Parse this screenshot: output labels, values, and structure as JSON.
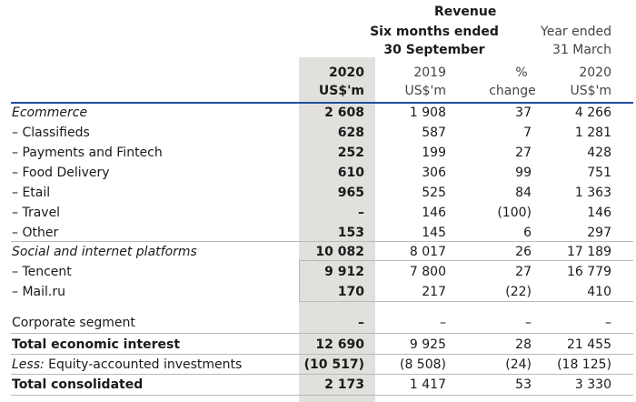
{
  "header": {
    "revenue": "Revenue",
    "six_months_line1": "Six months ended",
    "six_months_line2": "30 September",
    "year_ended_line1": "Year ended",
    "year_ended_line2": "31 March",
    "col_2020_year": "2020",
    "col_2020_unit": "US$'m",
    "col_2019_year": "2019",
    "col_2019_unit": "US$'m",
    "col_pct_top": "%",
    "col_pct_bottom": "change",
    "col_ye_year": "2020",
    "col_ye_unit": "US$'m"
  },
  "rows": [
    {
      "label": "Ecommerce",
      "v2020": "2 608",
      "v2019": "1 908",
      "pct": "37",
      "ye": "4 266"
    },
    {
      "label": "– Classifieds",
      "v2020": "628",
      "v2019": "587",
      "pct": "7",
      "ye": "1 281"
    },
    {
      "label": "– Payments and Fintech",
      "v2020": "252",
      "v2019": "199",
      "pct": "27",
      "ye": "428"
    },
    {
      "label": "– Food Delivery",
      "v2020": "610",
      "v2019": "306",
      "pct": "99",
      "ye": "751"
    },
    {
      "label": "– Etail",
      "v2020": "965",
      "v2019": "525",
      "pct": "84",
      "ye": "1 363"
    },
    {
      "label": "– Travel",
      "v2020": "–",
      "v2019": "146",
      "pct": "(100)",
      "ye": "146"
    },
    {
      "label": "– Other",
      "v2020": "153",
      "v2019": "145",
      "pct": "6",
      "ye": "297"
    },
    {
      "label": "Social and internet platforms",
      "v2020": "10 082",
      "v2019": "8 017",
      "pct": "26",
      "ye": "17 189"
    },
    {
      "label": "– Tencent",
      "v2020": "9 912",
      "v2019": "7 800",
      "pct": "27",
      "ye": "16 779"
    },
    {
      "label": "– Mail.ru",
      "v2020": "170",
      "v2019": "217",
      "pct": "(22)",
      "ye": "410"
    },
    {
      "label": "Corporate segment",
      "v2020": "–",
      "v2019": "–",
      "pct": "–",
      "ye": "–"
    },
    {
      "label": "Total economic interest",
      "v2020": "12 690",
      "v2019": "9 925",
      "pct": "28",
      "ye": "21 455"
    },
    {
      "label_italic": "Less:",
      "label": " Equity-accounted investments",
      "v2020": "(10 517)",
      "v2019": "(8 508)",
      "pct": "(24)",
      "ye": "(18 125)"
    },
    {
      "label": "Total consolidated",
      "v2020": "2 173",
      "v2019": "1 417",
      "pct": "53",
      "ye": "3 330"
    }
  ]
}
